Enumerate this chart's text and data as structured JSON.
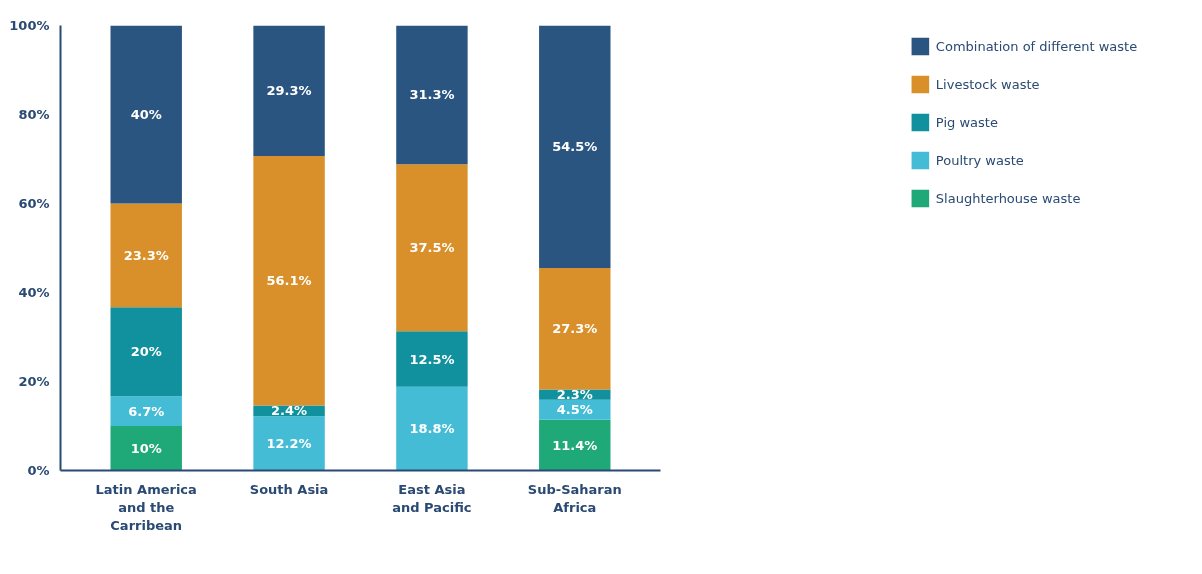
{
  "chart_data": {
    "type": "bar",
    "stacked": true,
    "categories": [
      "Latin America\nand the\nCarribean",
      "South Asia",
      "East Asia\nand Pacific",
      "Sub-Saharan\nAfrica"
    ],
    "series": [
      {
        "name": "Slaughterhouse waste",
        "color": "#1fa878",
        "values": [
          10,
          null,
          null,
          11.4
        ],
        "value_labels": [
          "10%",
          null,
          null,
          "11.4%"
        ]
      },
      {
        "name": "Poultry waste",
        "color": "#45bcd6",
        "values": [
          6.7,
          12.2,
          18.8,
          4.5
        ],
        "value_labels": [
          "6.7%",
          "12.2%",
          "18.8%",
          "4.5%"
        ]
      },
      {
        "name": "Pig waste",
        "color": "#11919e",
        "values": [
          20,
          2.4,
          12.5,
          2.3
        ],
        "value_labels": [
          "20%",
          "2.4%",
          "12.5%",
          "2.3%"
        ]
      },
      {
        "name": "Livestock waste",
        "color": "#d9902a",
        "values": [
          23.3,
          56.1,
          37.5,
          27.3
        ],
        "value_labels": [
          "23.3%",
          "56.1%",
          "37.5%",
          "27.3%"
        ]
      },
      {
        "name": "Combination of different waste",
        "color": "#2a5580",
        "values": [
          40,
          29.3,
          31.3,
          54.5
        ],
        "value_labels": [
          "40%",
          "29.3%",
          "31.3%",
          "54.5%"
        ]
      }
    ],
    "ylim": [
      0,
      100
    ],
    "yticks": [
      {
        "value": 0,
        "label": "0%"
      },
      {
        "value": 20,
        "label": "20%"
      },
      {
        "value": 40,
        "label": "40%"
      },
      {
        "value": 60,
        "label": "60%"
      },
      {
        "value": 80,
        "label": "80%"
      },
      {
        "value": 100,
        "label": "100%"
      }
    ],
    "grid": false,
    "legend": "right"
  }
}
